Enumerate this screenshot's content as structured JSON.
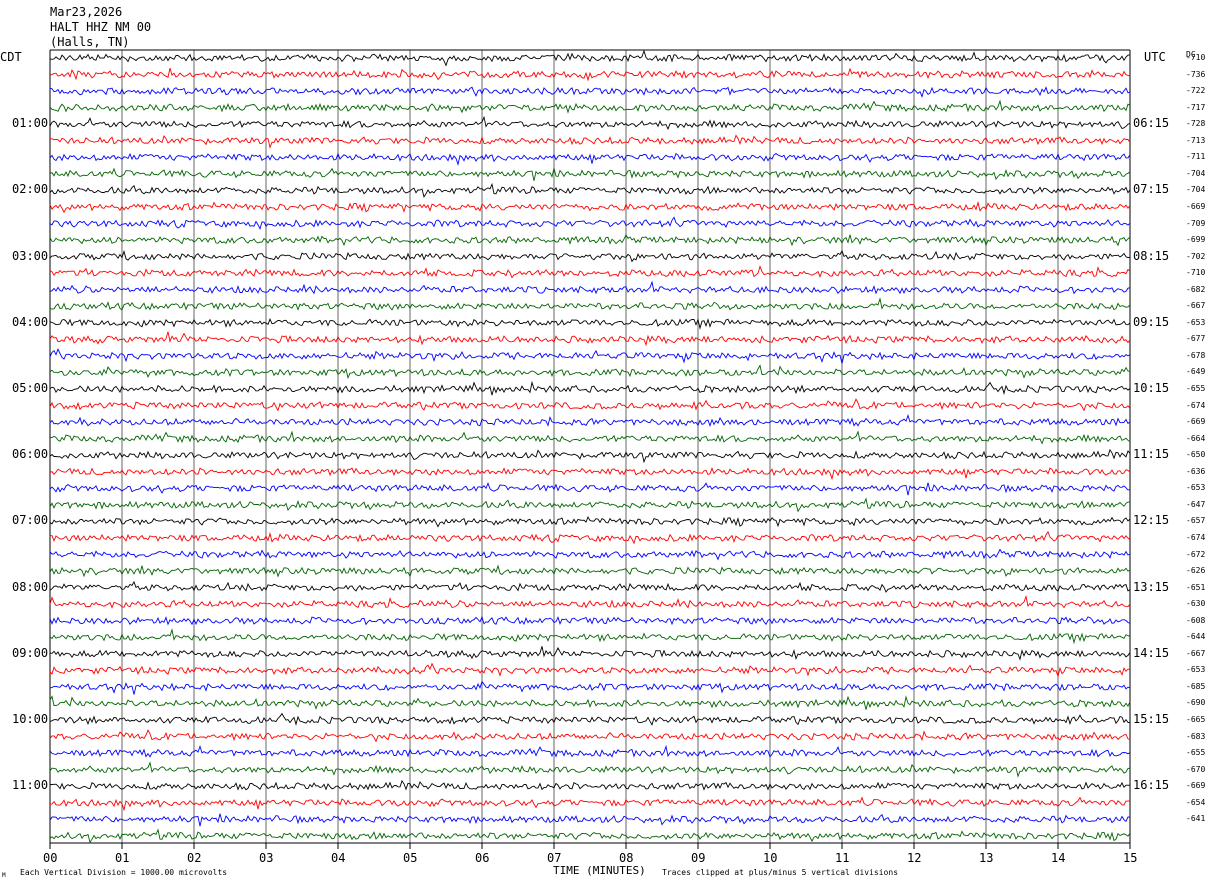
{
  "header": {
    "date": "Mar23,2026",
    "station": "HALT HHZ NM 00",
    "location": "(Halls, TN)"
  },
  "left_tz": "CDT",
  "right_tz": "UTC",
  "dc_label": "DC",
  "footer": {
    "xlabel": "TIME (MINUTES)",
    "scale_note": "Each Vertical Division = 1000.00 microvolts",
    "clip_note": "Traces clipped at plus/minus 5 vertical divisions",
    "corner_mark": "M"
  },
  "colors": [
    "#000000",
    "#ff0000",
    "#0000ff",
    "#006400"
  ],
  "chart_data": {
    "type": "line",
    "title": "",
    "xlabel": "TIME (MINUTES)",
    "ylabel": "",
    "xlim": [
      0,
      15
    ],
    "x_ticks": [
      "00",
      "01",
      "02",
      "03",
      "04",
      "05",
      "06",
      "07",
      "08",
      "09",
      "10",
      "11",
      "12",
      "13",
      "14",
      "15"
    ],
    "grid": true,
    "trace_count": 48,
    "left_time_labels": [
      "01:00",
      "02:00",
      "03:00",
      "04:00",
      "05:00",
      "06:00",
      "07:00",
      "08:00",
      "09:00",
      "10:00",
      "11:00"
    ],
    "right_time_labels": [
      "06:15",
      "07:15",
      "08:15",
      "09:15",
      "10:15",
      "11:15",
      "12:15",
      "13:15",
      "14:15",
      "15:15",
      "16:15"
    ],
    "dc_offsets": [
      -710,
      -736,
      -722,
      -717,
      -728,
      -713,
      -711,
      -704,
      -704,
      -669,
      -709,
      -699,
      -702,
      -710,
      -682,
      -667,
      -653,
      -677,
      -678,
      -649,
      -655,
      -674,
      -669,
      -664,
      -650,
      -636,
      -653,
      -647,
      -657,
      -674,
      -672,
      -626,
      -651,
      -630,
      -608,
      -644,
      -667,
      -653,
      -685,
      -690,
      -665,
      -683,
      -655,
      -670,
      -669,
      -654,
      -641
    ]
  }
}
